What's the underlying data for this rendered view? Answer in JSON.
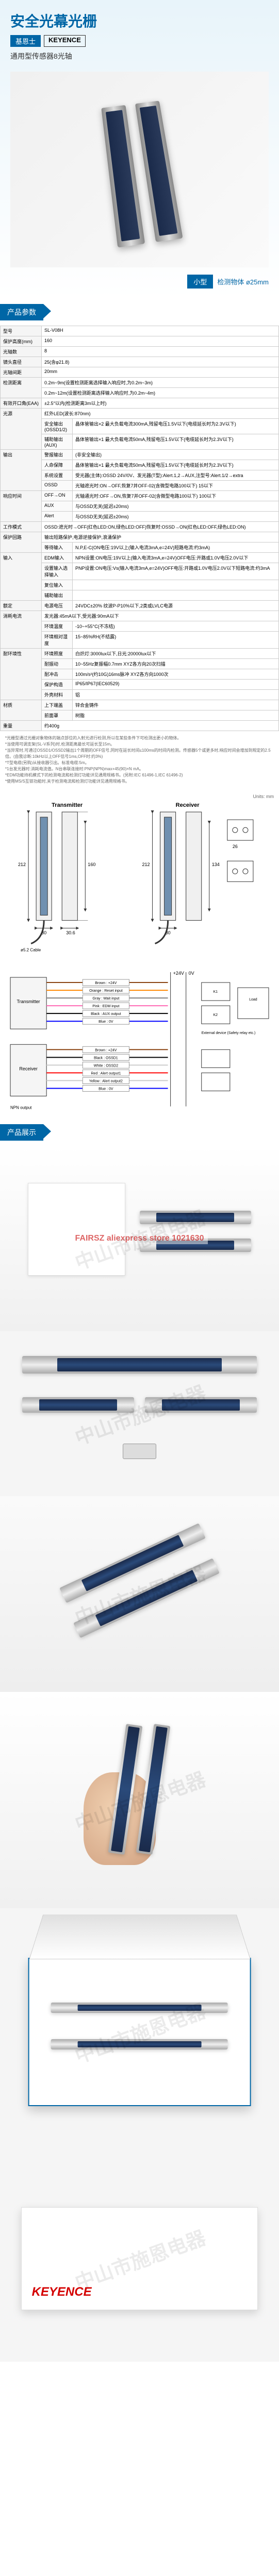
{
  "hero": {
    "title": "安全光幕光栅",
    "brand_cn": "基恩士",
    "brand_en": "KEYENCE",
    "subtitle": "通用型传感器8光轴",
    "badge_type": "小型",
    "badge_spec": "检测物体 ø25mm"
  },
  "sections": {
    "spec": "产品参数",
    "display": "产品展示"
  },
  "spec_rows": [
    {
      "l1": "型号",
      "l2": "",
      "v": "SL-V08H"
    },
    {
      "l1": "保护高度(mm)",
      "l2": "",
      "v": "160"
    },
    {
      "l1": "光轴数",
      "l2": "",
      "v": "8"
    },
    {
      "l1": "镜头直径",
      "l2": "",
      "v": "25(含φ21.8)"
    },
    {
      "l1": "光轴间距",
      "l2": "",
      "v": "20mm"
    },
    {
      "l1": "检测距离",
      "l2": "",
      "v": "0.2m~9m(设置检测距离选择输入响应时,为0.2m~3m)"
    },
    {
      "l1": "",
      "l2": "",
      "v": "0.2m~12m(设置检测距离选择输入响应时,为0.2m~4m)"
    },
    {
      "l1": "有效开口角(EAA)",
      "l2": "",
      "v": "±2.5°以内(检测距离3m以上时)"
    },
    {
      "l1": "光源",
      "l2": "",
      "v": "红外LED(波长:870nm)"
    },
    {
      "l1": "",
      "l2": "安全输出(OSSD1/2)",
      "v": "晶体管输出×2 最大负载电流300mA,残留电压1.5V以下(电缆延长时为2.3V以下)"
    },
    {
      "l1": "",
      "l2": "辅助输出(AUX)",
      "v": "晶体管输出×1 最大负载电流50mA,残留电压1.5V以下(电缆延长时为2.3V以下)"
    },
    {
      "l1": "输出",
      "l2": "警报输出",
      "v": "(非安全输出)"
    },
    {
      "l1": "",
      "l2": "人命保障",
      "v": "晶体管输出×1 最大负载电流50mA,残留电压1.5V以下(电缆延长时为2.3V以下)"
    },
    {
      "l1": "",
      "l2": "系统设置",
      "v": "受光器(主体):OSSD 24V/0V、发光器(T型):Alert.1,2→AUX,注型号:Alert.1/2→extra"
    },
    {
      "l1": "",
      "l2": "OSSD",
      "v": "光轴遮光时:ON→OFF,恢复7并OFF-02(含微型电路100以下) 15以下"
    },
    {
      "l1": "响应时间",
      "l2": "OFF→ON",
      "v": "光轴通光时:OFF→ON,恢复7并OFF-02(含微型电路100以下) 100以下"
    },
    {
      "l1": "",
      "l2": "AUX",
      "v": "与OSSD无关(延迟±20ms)"
    },
    {
      "l1": "",
      "l2": "Alert",
      "v": "与OSSD无关(延迟±20ms)"
    },
    {
      "l1": "工作模式",
      "l2": "",
      "v": "OSSD:遮光时→OFF(红色LED:ON,绿色LED:OFF)恢复时:OSSD→ON(红色LED:OFF,绿色LED:ON)"
    },
    {
      "l1": "保护回路",
      "l2": "",
      "v": "输出短路保护,电源逆接保护,浪涌保护"
    },
    {
      "l1": "",
      "l2": "等待输入",
      "v": "N.P,E-C(ON电压:19V以上(输入电流3mA,e=24V)短路电流:约3mA)"
    },
    {
      "l1": "输入",
      "l2": "EDM输入",
      "v": "NPN设置:ON电压:19V以上(输入电流3mA,e=24V)OFF电压:开路或1.0V电压2.0V以下"
    },
    {
      "l1": "",
      "l2": "设置输入选择输入",
      "v": "PNP设置:ON电压:Vs(输入电流3mA,e=24V)OFF电压:开路或1.0V电压2.0V以下短路电流:约3mA"
    },
    {
      "l1": "",
      "l2": "复位输入",
      "v": ""
    },
    {
      "l1": "",
      "l2": "辅助输出",
      "v": ""
    },
    {
      "l1": "额定",
      "l2": "电源电压",
      "v": "24VDC±20% 纹波P-P10%以下,2类或LVLC电源"
    },
    {
      "l1": "消耗电流",
      "l2": "",
      "v": "发光器:45mA以下,受光器:90mA以下"
    },
    {
      "l1": "",
      "l2": "环境温度",
      "v": "-10~+55°C(不冻结)"
    },
    {
      "l1": "",
      "l2": "环境相对湿度",
      "v": "15~85%RH(不结露)"
    },
    {
      "l1": "耐环境性",
      "l2": "环境照度",
      "v": "白炽灯:3000lux以下,日光:20000lux以下"
    },
    {
      "l1": "",
      "l2": "耐振动",
      "v": "10~55Hz复振幅0.7mm XYZ各方向20次扫描"
    },
    {
      "l1": "",
      "l2": "耐冲击",
      "v": "100m/s²(约10G)16ms脉冲 XYZ各方向1000次"
    },
    {
      "l1": "",
      "l2": "保护构造",
      "v": "IP65/IP67(IEC60529)"
    },
    {
      "l1": "",
      "l2": "外壳材料",
      "v": "铝"
    },
    {
      "l1": "材质",
      "l2": "上下端盖",
      "v": "锌合金铸件"
    },
    {
      "l1": "",
      "l2": "前面罩",
      "v": "树脂"
    },
    {
      "l1": "重量",
      "l2": "",
      "v": "约400g"
    }
  ],
  "notes": [
    "*光栅型通过光栅对象物体的端点部位的入射光进行检测,所以在某些条件下可检测出更小的物体。",
    "*当使用可调支架(SL-V系列)时,检测距离最长可延长至15m。",
    "*当异常时,可通过OSSD1/OSSD2输出1个周期的OFF信号,同时在延长时间≤100ms的时间内检测。传感器5个或更多时,响应时间会增加到规定的2.5倍。(自我诊断:10kHz以上OFF信号1ms,OFF时:约3%)",
    "*T型电缆(另购)从接收器引出。标准电缆:5m。",
    "*1台发光器时:消耗电流值。N台串联连接时:PNP(NPN)max+45(90)×N mA。",
    "*EDM功能待机模式下的检测电流和检测灯功能详见通用规格书。(另附:IEC 61496-1,IEC 61496-2)",
    "*使用MS/S互锁功能时,关于检测电流和检测灯功能详见通用规格书。"
  ],
  "diagram": {
    "unit_label": "Units: mm",
    "transmitter": "Transmitter",
    "receiver": "Receiver",
    "cable_label": "ø5.2 Cable",
    "dims": {
      "L": "212",
      "L1": "160",
      "L2": "134",
      "W": "30",
      "D": "30.6",
      "cap": "26"
    }
  },
  "wiring": {
    "transmitter": "Transmitter",
    "receiver": "Receiver",
    "wires_tx": [
      {
        "c": "#8b4513",
        "l": "Brown",
        "s": "+24V"
      },
      {
        "c": "#ff8800",
        "l": "Orange",
        "s": "Reset input"
      },
      {
        "c": "#808080",
        "l": "Gray",
        "s": "Wait input"
      },
      {
        "c": "#ff69b4",
        "l": "Pink",
        "s": "EDM input"
      },
      {
        "c": "#000",
        "l": "Black",
        "s": "AUX output"
      },
      {
        "c": "#0000ff",
        "l": "Blue",
        "s": "0V"
      }
    ],
    "wires_rx": [
      {
        "c": "#8b4513",
        "l": "Brown",
        "s": "+24V"
      },
      {
        "c": "#000",
        "l": "Black",
        "s": "OSSD1"
      },
      {
        "c": "#fff",
        "b": "1px solid #999",
        "l": "White",
        "s": "OSSD2"
      },
      {
        "c": "#ff0000",
        "l": "Red",
        "s": "Alert output1"
      },
      {
        "c": "#ffff00",
        "b": "1px solid #cc0",
        "l": "Yellow",
        "s": "Alert output2"
      },
      {
        "c": "#0000ff",
        "l": "Blue",
        "s": "0V"
      }
    ],
    "ext_switch": "External device (Safety relay etc.)",
    "load": "Load",
    "npn_label": "NPN output"
  },
  "watermarks": {
    "shop": "中山市施恩电器",
    "fairsz": "FAIRSZ aliexpress store 1021630"
  },
  "box": {
    "logo": "KEYENCE"
  }
}
